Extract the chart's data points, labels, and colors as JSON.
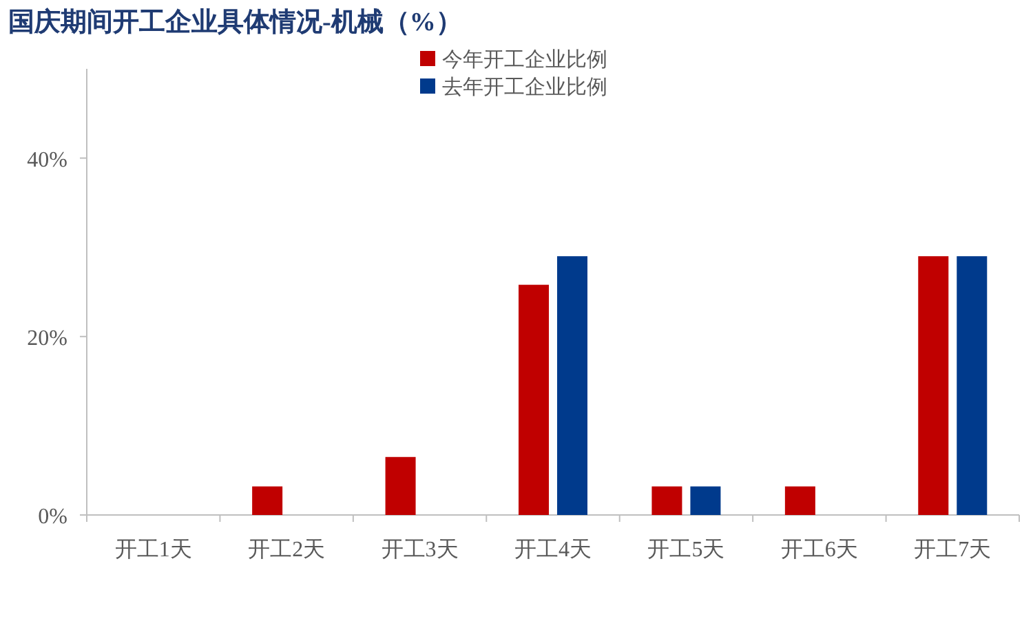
{
  "chart_data": {
    "type": "bar",
    "title": "国庆期间开工企业具体情况-机械（%）",
    "categories": [
      "开工1天",
      "开工2天",
      "开工3天",
      "开工4天",
      "开工5天",
      "开工6天",
      "开工7天"
    ],
    "series": [
      {
        "name": "今年开工企业比例",
        "color": "#c00000",
        "values": [
          0,
          3.2,
          6.5,
          25.8,
          3.2,
          3.2,
          29.0
        ]
      },
      {
        "name": "去年开工企业比例",
        "color": "#003a8c",
        "values": [
          0,
          0,
          0,
          29.0,
          3.2,
          0,
          29.0
        ]
      }
    ],
    "ylim": [
      0,
      50
    ],
    "yticks": [
      {
        "value": 0,
        "label": "0%"
      },
      {
        "value": 20,
        "label": "20%"
      },
      {
        "value": 40,
        "label": "40%"
      }
    ],
    "legend": "top"
  }
}
